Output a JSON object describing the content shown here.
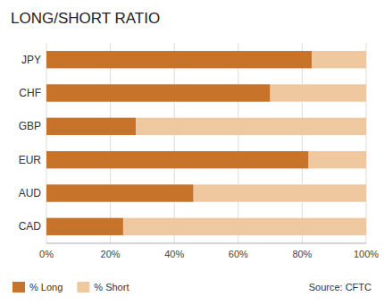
{
  "chart_data": {
    "type": "bar",
    "orientation": "horizontal",
    "stacked": true,
    "title": "LONG/SHORT RATIO",
    "categories": [
      "JPY",
      "CHF",
      "GBP",
      "EUR",
      "AUD",
      "CAD"
    ],
    "series": [
      {
        "name": "% Long",
        "color": "#C8732A",
        "values": [
          83,
          70,
          28,
          82,
          46,
          24
        ]
      },
      {
        "name": "% Short",
        "color": "#F0C8A0",
        "values": [
          17,
          30,
          72,
          18,
          54,
          76
        ]
      }
    ],
    "xlim": [
      0,
      100
    ],
    "xticks": [
      {
        "value": 0,
        "label": "0%"
      },
      {
        "value": 20,
        "label": "20%"
      },
      {
        "value": 40,
        "label": "40%"
      },
      {
        "value": 60,
        "label": "60%"
      },
      {
        "value": 80,
        "label": "80%"
      },
      {
        "value": 100,
        "label": "100%"
      }
    ],
    "grid": true,
    "legend": "bottom",
    "annotations": [
      "Source: CFTC"
    ]
  }
}
